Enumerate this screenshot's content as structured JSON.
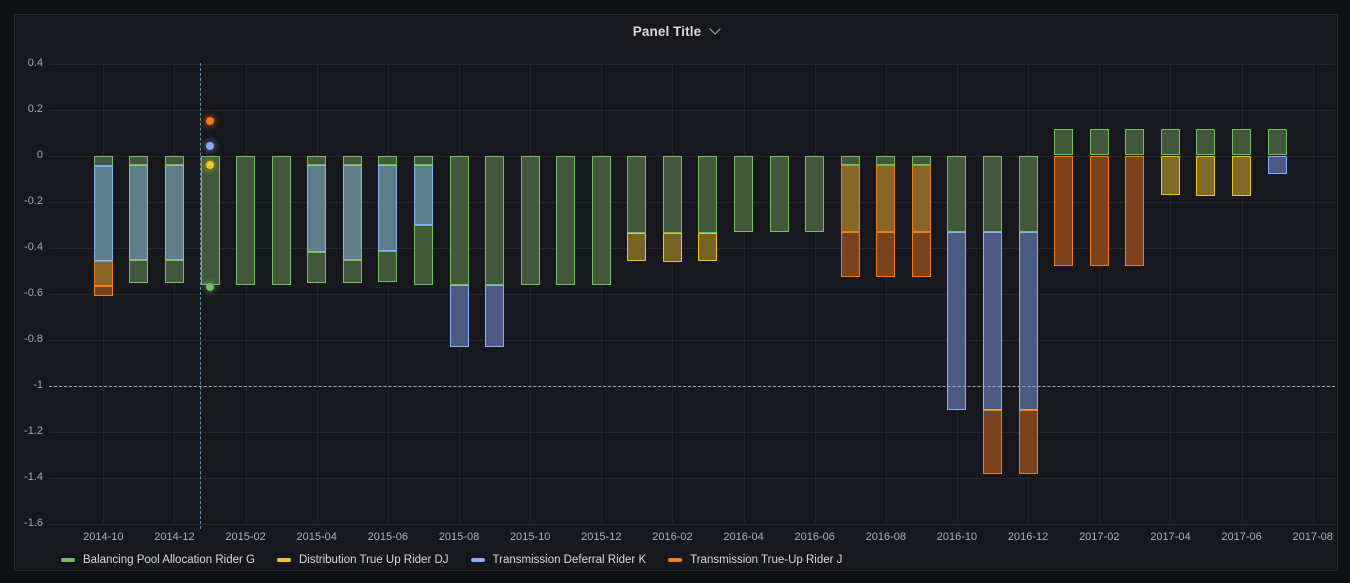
{
  "panel": {
    "title": "Panel Title"
  },
  "legend": {
    "items": [
      {
        "key": "G",
        "label": "Balancing Pool Allocation Rider G",
        "color": "#73bf69"
      },
      {
        "key": "DJ",
        "label": "Distribution True Up Rider DJ",
        "color": "#e9c525"
      },
      {
        "key": "K",
        "label": "Transmission Deferral Rider K",
        "color": "#8ab0f4"
      },
      {
        "key": "J",
        "label": "Transmission True-Up Rider J",
        "color": "#ee7d1e"
      }
    ]
  },
  "colors": {
    "page_bg": "#0f1014",
    "panel_bg": "#17181d",
    "grid": "rgba(204,204,220,0.08)",
    "axis_text": "#a2a8b1",
    "title_text": "#d8d9da",
    "segments": {
      "G": {
        "fill": "#41593a",
        "stroke": "#73bf69"
      },
      "KoG": {
        "fill": "#5e7f8a",
        "stroke": "#8ab0f4"
      },
      "K": {
        "fill": "#4a5a82",
        "stroke": "#8ab0f4"
      },
      "DJoG": {
        "fill": "#786326",
        "stroke": "#e9c525"
      },
      "DJ": {
        "fill": "#7d6b26",
        "stroke": "#e9c525"
      },
      "JoG": {
        "fill": "#876628",
        "stroke": "#ee7d1e"
      },
      "J": {
        "fill": "#7a431e",
        "stroke": "#ee7d1e"
      }
    }
  },
  "chart_data": {
    "type": "bar",
    "stacked": true,
    "title": "Panel Title",
    "xlabel": "",
    "ylabel": "",
    "ylim": [
      -1.6,
      0.4
    ],
    "grid": true,
    "legend_position": "bottom-left",
    "y_ticks": [
      {
        "v": 0.4,
        "label": "0.4"
      },
      {
        "v": 0.2,
        "label": "0.2"
      },
      {
        "v": 0,
        "label": "0"
      },
      {
        "v": -0.2,
        "label": "-0.2"
      },
      {
        "v": -0.4,
        "label": "-0.4"
      },
      {
        "v": -0.6,
        "label": "-0.6"
      },
      {
        "v": -0.8,
        "label": "-0.8"
      },
      {
        "v": -1,
        "label": "-1"
      },
      {
        "v": -1.2,
        "label": "-1.2"
      },
      {
        "v": -1.4,
        "label": "-1.4"
      },
      {
        "v": -1.6,
        "label": "-1.6"
      }
    ],
    "x_tick_labels": [
      "2014-10",
      "2014-12",
      "2015-02",
      "2015-04",
      "2015-06",
      "2015-08",
      "2015-10",
      "2015-12",
      "2016-02",
      "2016-04",
      "2016-06",
      "2016-08",
      "2016-10",
      "2016-12",
      "2017-02",
      "2017-04",
      "2017-06",
      "2017-08"
    ],
    "series_names": {
      "G": "Balancing Pool Allocation Rider G",
      "DJ": "Distribution True Up Rider DJ",
      "K": "Transmission Deferral Rider K",
      "J": "Transmission True-Up Rider J",
      "KoG": "Transmission Deferral Rider K (over G)",
      "DJoG": "Distribution True Up Rider DJ (over G)",
      "JoG": "Transmission True-Up Rider J (over G)"
    },
    "bars": [
      {
        "month": "2014-10",
        "seg": [
          [
            "G",
            0,
            -0.045
          ],
          [
            "KoG",
            -0.045,
            -0.458
          ],
          [
            "JoG",
            -0.458,
            -0.568
          ],
          [
            "J",
            -0.568,
            -0.611
          ]
        ]
      },
      {
        "month": "2014-11",
        "seg": [
          [
            "G",
            0,
            -0.042
          ],
          [
            "KoG",
            -0.042,
            -0.455
          ],
          [
            "G",
            -0.455,
            -0.553
          ]
        ]
      },
      {
        "month": "2014-12",
        "seg": [
          [
            "G",
            0,
            -0.042
          ],
          [
            "KoG",
            -0.042,
            -0.455
          ],
          [
            "G",
            -0.455,
            -0.553
          ]
        ]
      },
      {
        "month": "2015-01",
        "seg": [
          [
            "G",
            0,
            -0.563
          ]
        ]
      },
      {
        "month": "2015-02",
        "seg": [
          [
            "G",
            0,
            -0.563
          ]
        ]
      },
      {
        "month": "2015-03",
        "seg": [
          [
            "G",
            0,
            -0.563
          ]
        ]
      },
      {
        "month": "2015-04",
        "seg": [
          [
            "G",
            0,
            -0.042
          ],
          [
            "KoG",
            -0.042,
            -0.42
          ],
          [
            "G",
            -0.42,
            -0.553
          ]
        ]
      },
      {
        "month": "2015-05",
        "seg": [
          [
            "G",
            0,
            -0.042
          ],
          [
            "KoG",
            -0.042,
            -0.455
          ],
          [
            "G",
            -0.455,
            -0.553
          ]
        ]
      },
      {
        "month": "2015-06",
        "seg": [
          [
            "G",
            0,
            -0.042
          ],
          [
            "KoG",
            -0.042,
            -0.417
          ],
          [
            "G",
            -0.417,
            -0.549
          ]
        ]
      },
      {
        "month": "2015-07",
        "seg": [
          [
            "G",
            0,
            -0.042
          ],
          [
            "KoG",
            -0.042,
            -0.301
          ],
          [
            "G",
            -0.301,
            -0.563
          ]
        ]
      },
      {
        "month": "2015-08",
        "seg": [
          [
            "G",
            0,
            -0.565
          ],
          [
            "K",
            -0.565,
            -0.831
          ]
        ]
      },
      {
        "month": "2015-09",
        "seg": [
          [
            "G",
            0,
            -0.565
          ],
          [
            "K",
            -0.565,
            -0.831
          ]
        ]
      },
      {
        "month": "2015-10",
        "seg": [
          [
            "G",
            0,
            -0.565
          ]
        ]
      },
      {
        "month": "2015-11",
        "seg": [
          [
            "G",
            0,
            -0.565
          ]
        ]
      },
      {
        "month": "2015-12",
        "seg": [
          [
            "G",
            0,
            -0.565
          ]
        ]
      },
      {
        "month": "2016-01",
        "seg": [
          [
            "G",
            0,
            -0.335
          ],
          [
            "DJoG",
            -0.335,
            -0.457
          ]
        ]
      },
      {
        "month": "2016-02",
        "seg": [
          [
            "G",
            0,
            -0.335
          ],
          [
            "DJoG",
            -0.335,
            -0.462
          ]
        ]
      },
      {
        "month": "2016-03",
        "seg": [
          [
            "G",
            0,
            -0.335
          ],
          [
            "DJoG",
            -0.335,
            -0.457
          ]
        ]
      },
      {
        "month": "2016-04",
        "seg": [
          [
            "G",
            0,
            -0.334
          ]
        ]
      },
      {
        "month": "2016-05",
        "seg": [
          [
            "G",
            0,
            -0.334
          ]
        ]
      },
      {
        "month": "2016-06",
        "seg": [
          [
            "G",
            0,
            -0.331
          ]
        ]
      },
      {
        "month": "2016-07",
        "seg": [
          [
            "G",
            0,
            -0.042
          ],
          [
            "JoG",
            -0.042,
            -0.332
          ],
          [
            "J",
            -0.332,
            -0.527
          ]
        ]
      },
      {
        "month": "2016-08",
        "seg": [
          [
            "G",
            0,
            -0.042
          ],
          [
            "JoG",
            -0.042,
            -0.332
          ],
          [
            "J",
            -0.332,
            -0.527
          ]
        ]
      },
      {
        "month": "2016-09",
        "seg": [
          [
            "G",
            0,
            -0.042
          ],
          [
            "JoG",
            -0.042,
            -0.332
          ],
          [
            "J",
            -0.332,
            -0.527
          ]
        ]
      },
      {
        "month": "2016-10",
        "seg": [
          [
            "G",
            0,
            -0.334
          ],
          [
            "K",
            -0.334,
            -1.108
          ]
        ]
      },
      {
        "month": "2016-11",
        "seg": [
          [
            "G",
            0,
            -0.334
          ],
          [
            "K",
            -0.334,
            -1.108
          ],
          [
            "J",
            -1.108,
            -1.386
          ]
        ]
      },
      {
        "month": "2016-12",
        "seg": [
          [
            "G",
            0,
            -0.334
          ],
          [
            "K",
            -0.334,
            -1.108
          ],
          [
            "J",
            -1.108,
            -1.386
          ]
        ]
      },
      {
        "month": "2017-01",
        "seg": [
          [
            "G",
            0.114,
            0
          ],
          [
            "J",
            0,
            -0.481
          ]
        ]
      },
      {
        "month": "2017-02",
        "seg": [
          [
            "G",
            0.114,
            0
          ],
          [
            "J",
            0,
            -0.481
          ]
        ]
      },
      {
        "month": "2017-03",
        "seg": [
          [
            "G",
            0.114,
            0
          ],
          [
            "J",
            0,
            -0.481
          ]
        ]
      },
      {
        "month": "2017-04",
        "seg": [
          [
            "G",
            0.114,
            0
          ],
          [
            "DJ",
            0,
            -0.172
          ]
        ]
      },
      {
        "month": "2017-05",
        "seg": [
          [
            "G",
            0.114,
            0
          ],
          [
            "DJ",
            0,
            -0.175
          ]
        ]
      },
      {
        "month": "2017-06",
        "seg": [
          [
            "G",
            0.114,
            0
          ],
          [
            "DJ",
            0,
            -0.175
          ]
        ]
      },
      {
        "month": "2017-07",
        "seg": [
          [
            "G",
            0.114,
            0
          ],
          [
            "K",
            0,
            -0.082
          ]
        ]
      }
    ],
    "annotations": {
      "vline": {
        "month": "2015-01",
        "color": "#5e93a8"
      },
      "hline": {
        "value": -1,
        "color": "#9aa7b2"
      },
      "points": [
        {
          "series": "J",
          "month": "2015-01",
          "value": 0.15,
          "color": "#f07c1c"
        },
        {
          "series": "K",
          "month": "2015-01",
          "value": 0.04,
          "color": "#86aaf2"
        },
        {
          "series": "DJ",
          "month": "2015-01",
          "value": -0.04,
          "color": "#eecb2a"
        },
        {
          "series": "G",
          "month": "2015-01",
          "value": -0.57,
          "color": "#73bf69"
        }
      ]
    }
  }
}
